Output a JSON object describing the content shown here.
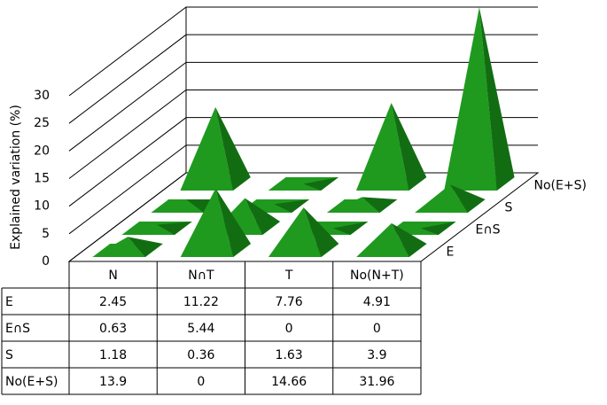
{
  "chart_data": {
    "type": "pyramid3d",
    "y_label": "Explained variation (%)",
    "categories": [
      "N",
      "N∩T",
      "T",
      "No(N+T)"
    ],
    "series": [
      {
        "name": "E",
        "color": "#1f9a1f",
        "values": [
          2.45,
          11.22,
          7.76,
          4.91
        ]
      },
      {
        "name": "E∩S",
        "color": "#1f9a1f",
        "values": [
          0.63,
          5.44,
          0,
          0
        ]
      },
      {
        "name": "S",
        "color": "#1f9a1f",
        "values": [
          1.18,
          0.36,
          1.63,
          3.9
        ]
      },
      {
        "name": "No(E+S)",
        "color": "#1f9a1f",
        "values": [
          13.9,
          0,
          14.66,
          31.96
        ]
      }
    ],
    "ylim": [
      0,
      30
    ],
    "yticks": [
      0,
      5,
      10,
      15,
      20,
      25,
      30
    ],
    "grid": true
  }
}
